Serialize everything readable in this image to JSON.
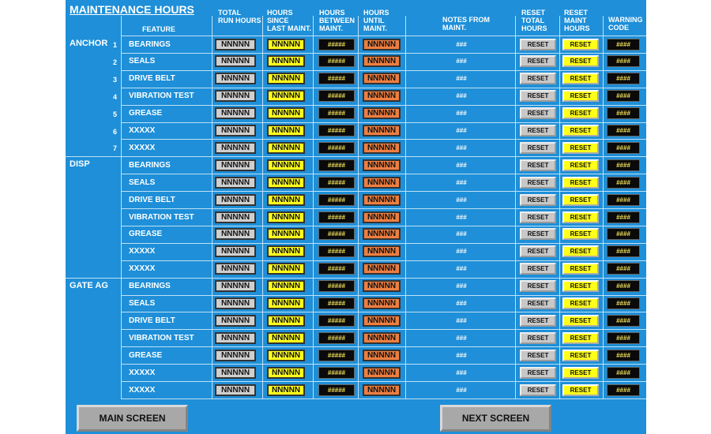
{
  "header": {
    "title": "MAINTENANCE HOURS"
  },
  "columns": [
    "FEATURE",
    "TOTAL\nRUN HOURS",
    "HOURS\nSINCE\nLAST MAINT.",
    "HOURS\nBETWEEN\nMAINT.",
    "HOURS\nUNTIL\nMAINT.",
    "NOTES FROM\nMAINT.",
    "RESET\nTOTAL\nHOURS",
    "RESET\nMAINT\nHOURS",
    "WARNING\nCODE"
  ],
  "groups": [
    {
      "name": "ANCHOR",
      "rows": [
        {
          "number": "1",
          "cells": [
            "BEARINGS",
            "NNNNN",
            "NNNNN",
            "#####",
            "NNNNN",
            "###",
            "RESET",
            "RESET",
            "####"
          ]
        },
        {
          "number": "2",
          "cells": [
            "SEALS",
            "NNNNN",
            "NNNNN",
            "#####",
            "NNNNN",
            "###",
            "RESET",
            "RESET",
            "####"
          ]
        },
        {
          "number": "3",
          "cells": [
            "DRIVE BELT",
            "NNNNN",
            "NNNNN",
            "#####",
            "NNNNN",
            "###",
            "RESET",
            "RESET",
            "####"
          ]
        },
        {
          "number": "4",
          "cells": [
            "VIBRATION TEST",
            "NNNNN",
            "NNNNN",
            "#####",
            "NNNNN",
            "###",
            "RESET",
            "RESET",
            "####"
          ]
        },
        {
          "number": "5",
          "cells": [
            "GREASE",
            "NNNNN",
            "NNNNN",
            "#####",
            "NNNNN",
            "###",
            "RESET",
            "RESET",
            "####"
          ]
        },
        {
          "number": "6",
          "cells": [
            "XXXXX",
            "NNNNN",
            "NNNNN",
            "#####",
            "NNNNN",
            "###",
            "RESET",
            "RESET",
            "####"
          ]
        },
        {
          "number": "7",
          "cells": [
            "XXXXX",
            "NNNNN",
            "NNNNN",
            "#####",
            "NNNNN",
            "###",
            "RESET",
            "RESET",
            "####"
          ]
        }
      ]
    },
    {
      "name": "DISP",
      "rows": [
        {
          "cells": [
            "BEARINGS",
            "NNNNN",
            "NNNNN",
            "#####",
            "NNNNN",
            "###",
            "RESET",
            "RESET",
            "####"
          ]
        },
        {
          "cells": [
            "SEALS",
            "NNNNN",
            "NNNNN",
            "#####",
            "NNNNN",
            "###",
            "RESET",
            "RESET",
            "####"
          ]
        },
        {
          "cells": [
            "DRIVE BELT",
            "NNNNN",
            "NNNNN",
            "#####",
            "NNNNN",
            "###",
            "RESET",
            "RESET",
            "####"
          ]
        },
        {
          "cells": [
            "VIBRATION TEST",
            "NNNNN",
            "NNNNN",
            "#####",
            "NNNNN",
            "###",
            "RESET",
            "RESET",
            "####"
          ]
        },
        {
          "cells": [
            "GREASE",
            "NNNNN",
            "NNNNN",
            "#####",
            "NNNNN",
            "###",
            "RESET",
            "RESET",
            "####"
          ]
        },
        {
          "cells": [
            "XXXXX",
            "NNNNN",
            "NNNNN",
            "#####",
            "NNNNN",
            "###",
            "RESET",
            "RESET",
            "####"
          ]
        },
        {
          "cells": [
            "XXXXX",
            "NNNNN",
            "NNNNN",
            "#####",
            "NNNNN",
            "###",
            "RESET",
            "RESET",
            "####"
          ]
        }
      ]
    },
    {
      "name": "GATE AG",
      "rows": [
        {
          "cells": [
            "BEARINGS",
            "NNNNN",
            "NNNNN",
            "#####",
            "NNNNN",
            "###",
            "RESET",
            "RESET",
            "####"
          ]
        },
        {
          "cells": [
            "SEALS",
            "NNNNN",
            "NNNNN",
            "#####",
            "NNNNN",
            "###",
            "RESET",
            "RESET",
            "####"
          ]
        },
        {
          "cells": [
            "DRIVE BELT",
            "NNNNN",
            "NNNNN",
            "#####",
            "NNNNN",
            "###",
            "RESET",
            "RESET",
            "####"
          ]
        },
        {
          "cells": [
            "VIBRATION TEST",
            "NNNNN",
            "NNNNN",
            "#####",
            "NNNNN",
            "###",
            "RESET",
            "RESET",
            "####"
          ]
        },
        {
          "cells": [
            "GREASE",
            "NNNNN",
            "NNNNN",
            "#####",
            "NNNNN",
            "###",
            "RESET",
            "RESET",
            "####"
          ]
        },
        {
          "cells": [
            "XXXXX",
            "NNNNN",
            "NNNNN",
            "#####",
            "NNNNN",
            "###",
            "RESET",
            "RESET",
            "####"
          ]
        },
        {
          "cells": [
            "XXXXX",
            "NNNNN",
            "NNNNN",
            "#####",
            "NNNNN",
            "###",
            "RESET",
            "RESET",
            "####"
          ]
        }
      ]
    }
  ],
  "buttons": [
    "MAIN SCREEN",
    "NEXT SCREEN"
  ]
}
